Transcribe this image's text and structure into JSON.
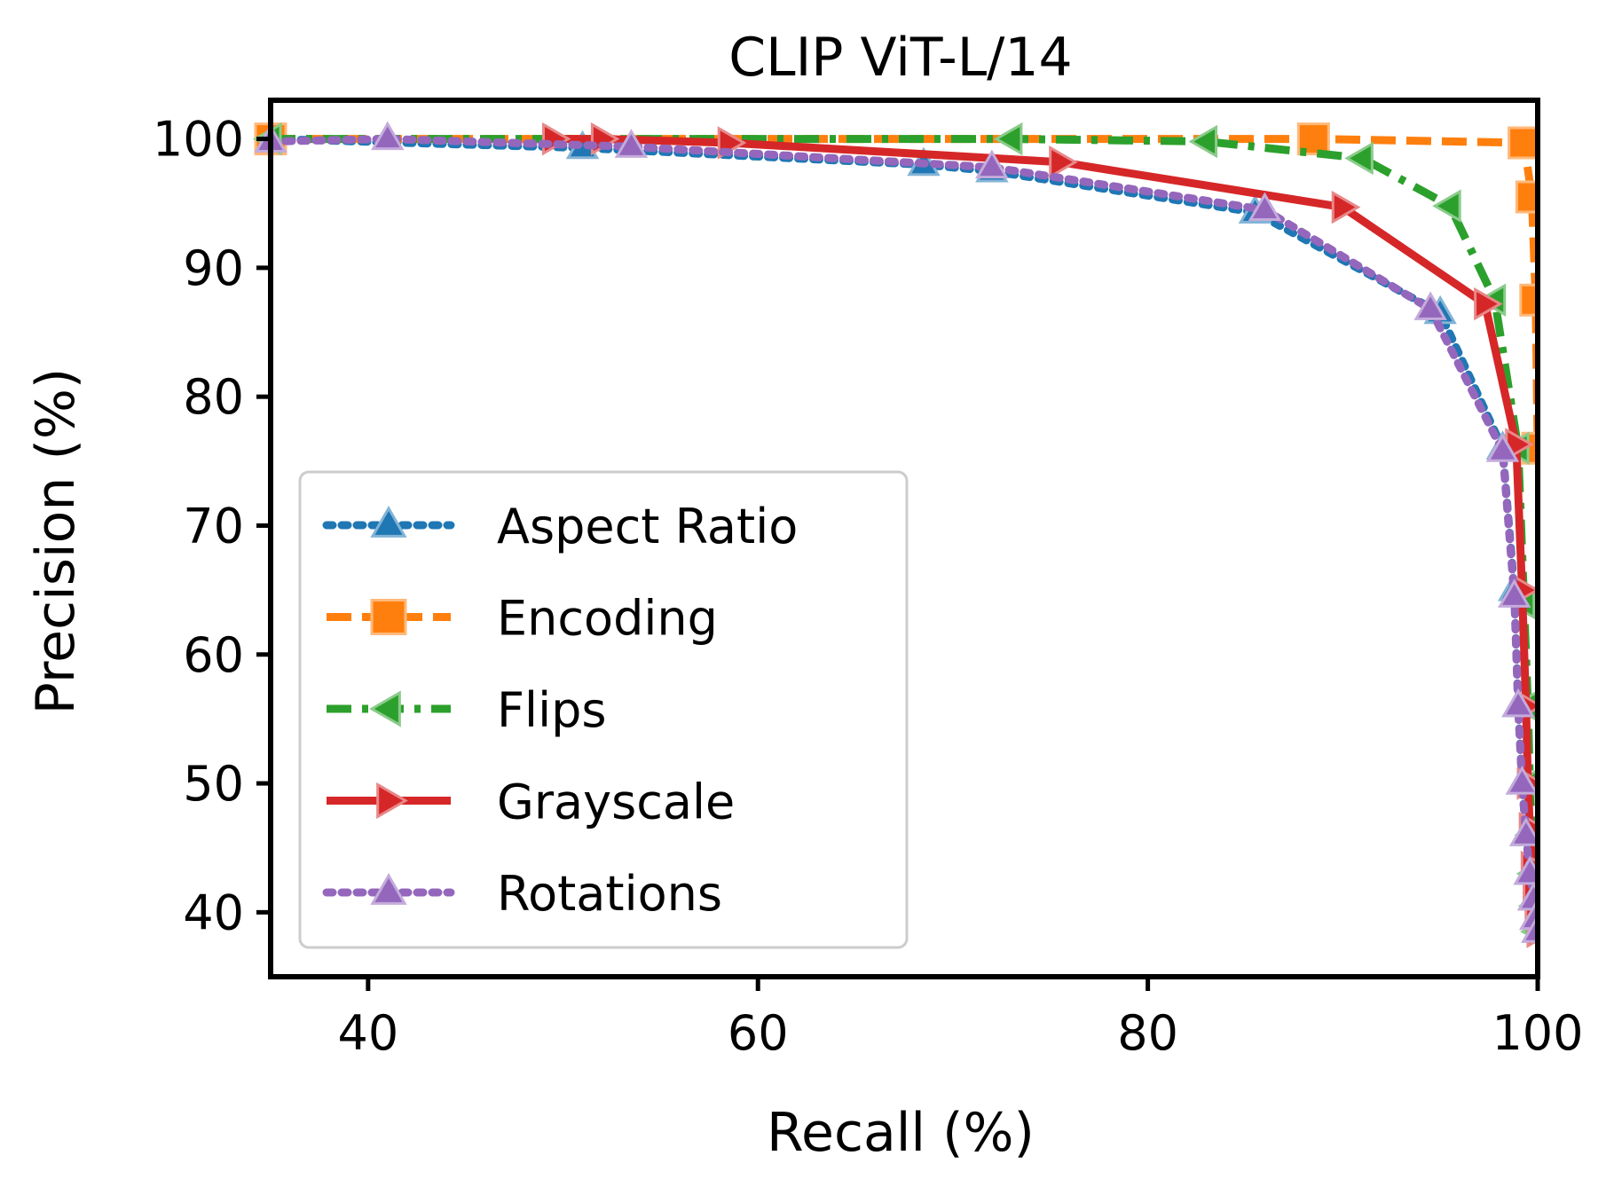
{
  "chart_data": {
    "type": "line",
    "title": "CLIP ViT-L/14",
    "xlabel": "Recall (%)",
    "ylabel": "Precision (%)",
    "xlim": [
      35,
      100
    ],
    "ylim": [
      35,
      103
    ],
    "xticks": [
      40,
      60,
      80,
      100
    ],
    "yticks": [
      40,
      50,
      60,
      70,
      80,
      90,
      100
    ],
    "grid": false,
    "legend_position": "lower-left",
    "series": [
      {
        "name": "Aspect Ratio",
        "color": "#1f77b4",
        "line_style": "dotted",
        "marker": "triangle-up",
        "x": [
          35,
          51,
          68.5,
          72,
          85.5,
          95,
          98.2,
          98.8,
          99.0,
          99.2,
          99.4,
          99.6,
          99.8,
          99.9,
          100
        ],
        "y": [
          100,
          99.3,
          98.0,
          97.5,
          94.3,
          86.5,
          76.0,
          65.0,
          56.0,
          50.0,
          46.0,
          43.0,
          41.0,
          39.5,
          38.5
        ]
      },
      {
        "name": "Encoding",
        "color": "#ff7f0e",
        "line_style": "dashed",
        "marker": "square",
        "x": [
          35,
          88.5,
          99.3,
          99.7,
          99.9,
          100
        ],
        "y": [
          100,
          100,
          99.7,
          95.5,
          87.5,
          76.0
        ]
      },
      {
        "name": "Flips",
        "color": "#2ca02c",
        "line_style": "dash-dot",
        "marker": "triangle-left",
        "x": [
          35,
          73,
          83,
          91,
          95.5,
          97.8,
          99.0,
          99.3,
          99.5,
          99.6,
          99.7,
          99.8,
          99.9,
          100
        ],
        "y": [
          100,
          100,
          99.8,
          98.5,
          94.8,
          87.5,
          76.0,
          64.0,
          56.0,
          50.0,
          46.0,
          43.0,
          40.5,
          38.5
        ]
      },
      {
        "name": "Grayscale",
        "color": "#d62728",
        "line_style": "solid",
        "marker": "triangle-right",
        "x": [
          49.5,
          52,
          58.5,
          75.5,
          90,
          97.3,
          98.9,
          99.2,
          99.4,
          99.5,
          99.6,
          99.7,
          99.8,
          99.9,
          100
        ],
        "y": [
          100,
          100,
          99.7,
          98.2,
          94.7,
          87.2,
          76.3,
          65.0,
          56.0,
          50.0,
          46.5,
          43.5,
          41.5,
          40.0,
          38.5
        ]
      },
      {
        "name": "Rotations",
        "color": "#9467bd",
        "line_style": "dotted",
        "marker": "triangle-up",
        "x": [
          35,
          41,
          53.5,
          72,
          86,
          94.5,
          98.2,
          98.8,
          99.0,
          99.2,
          99.4,
          99.6,
          99.8,
          99.9,
          100
        ],
        "y": [
          99.8,
          100,
          99.4,
          97.8,
          94.5,
          86.8,
          75.8,
          64.5,
          56.0,
          50.0,
          46.0,
          43.0,
          41.0,
          39.5,
          38.5
        ]
      }
    ]
  }
}
